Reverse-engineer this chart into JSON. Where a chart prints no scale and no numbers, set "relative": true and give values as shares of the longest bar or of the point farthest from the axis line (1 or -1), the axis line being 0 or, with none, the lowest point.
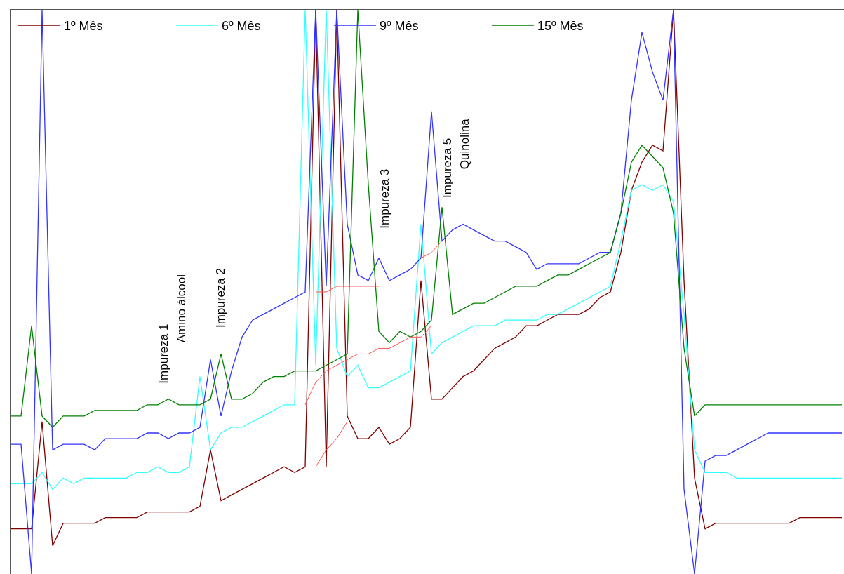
{
  "chart_data": {
    "type": "line",
    "relative": true,
    "legend": "top left",
    "marker": "none",
    "line_style": "solid",
    "categories": [
      null,
      null,
      null,
      null,
      null,
      null,
      null,
      null,
      null,
      null,
      null,
      null,
      null,
      null,
      null,
      null,
      null,
      null,
      null,
      null,
      null,
      null,
      null,
      null,
      null,
      null,
      null,
      null,
      null,
      null,
      null,
      null,
      null,
      null,
      null,
      null,
      null,
      null,
      null,
      null,
      null,
      null,
      null,
      null,
      null,
      null,
      null,
      null,
      null,
      null,
      null,
      null,
      null,
      null,
      null,
      null,
      null,
      null,
      null,
      null,
      null,
      null,
      null,
      null,
      null,
      null,
      null,
      null,
      null,
      null,
      null,
      null,
      null,
      null,
      null,
      null,
      null,
      null,
      null,
      null
    ],
    "series": [
      {
        "name": "1º Mês",
        "color": "#800000",
        "values": [
          0.08,
          0.08,
          0.08,
          0.27,
          0.05,
          0.09,
          0.09,
          0.09,
          0.09,
          0.1,
          0.1,
          0.1,
          0.1,
          0.11,
          0.11,
          0.11,
          0.11,
          0.11,
          0.12,
          0.22,
          0.13,
          0.14,
          0.15,
          0.16,
          0.17,
          0.18,
          0.19,
          0.18,
          0.19,
          1,
          0.19,
          1,
          0.28,
          0.24,
          0.24,
          0.26,
          0.23,
          0.24,
          0.26,
          0.52,
          0.31,
          0.31,
          0.33,
          0.35,
          0.36,
          0.38,
          0.4,
          0.41,
          0.42,
          0.44,
          0.44,
          0.45,
          0.46,
          0.46,
          0.46,
          0.47,
          0.49,
          0.5,
          0.57,
          0.68,
          0.73,
          0.76,
          0.75,
          1,
          0.52,
          0.17,
          0.08,
          0.09,
          0.09,
          0.09,
          0.09,
          0.09,
          0.09,
          0.09,
          0.09,
          0.1,
          0.1,
          0.1,
          0.1,
          0.1
        ]
      },
      {
        "name": "6º Mês",
        "color": "#33ffff",
        "values": [
          0.16,
          0.16,
          0.16,
          0.18,
          0.15,
          0.17,
          0.16,
          0.17,
          0.17,
          0.17,
          0.17,
          0.17,
          0.18,
          0.18,
          0.19,
          0.18,
          0.18,
          0.19,
          0.35,
          0.22,
          0.25,
          0.26,
          0.26,
          0.27,
          0.28,
          0.29,
          0.3,
          0.3,
          1,
          0.37,
          1,
          0.4,
          0.35,
          0.37,
          0.33,
          0.33,
          0.34,
          0.35,
          0.36,
          0.62,
          0.39,
          0.41,
          0.42,
          0.43,
          0.44,
          0.44,
          0.44,
          0.45,
          0.45,
          0.45,
          0.45,
          0.46,
          0.46,
          0.47,
          0.48,
          0.49,
          0.5,
          0.51,
          0.59,
          0.68,
          0.69,
          0.68,
          0.69,
          0.66,
          0.46,
          0.22,
          0.18,
          0.18,
          0.18,
          0.17,
          0.17,
          0.17,
          0.17,
          0.17,
          0.17,
          0.17,
          0.17,
          0.17,
          0.17,
          0.17
        ]
      },
      {
        "name": "9º Mês",
        "color": "#3333ff",
        "values": [
          0.23,
          0.23,
          0,
          1,
          0.22,
          0.23,
          0.23,
          0.23,
          0.22,
          0.24,
          0.24,
          0.24,
          0.24,
          0.25,
          0.25,
          0.24,
          0.25,
          0.25,
          0.26,
          0.38,
          0.28,
          0.36,
          0.42,
          0.45,
          0.46,
          0.47,
          0.48,
          0.49,
          0.5,
          1,
          0.51,
          1,
          0.62,
          0.53,
          0.52,
          0.56,
          0.52,
          0.53,
          0.54,
          0.56,
          0.82,
          0.59,
          0.61,
          0.62,
          0.61,
          0.6,
          0.59,
          0.59,
          0.58,
          0.57,
          0.54,
          0.55,
          0.55,
          0.55,
          0.55,
          0.56,
          0.57,
          0.57,
          0.64,
          0.84,
          0.96,
          0.89,
          0.84,
          1,
          0.15,
          0,
          0.2,
          0.21,
          0.21,
          0.22,
          0.23,
          0.24,
          0.25,
          0.25,
          0.25,
          0.25,
          0.25,
          0.25,
          0.25,
          0.25
        ]
      },
      {
        "name": "15º Mês",
        "color": "#008000",
        "values": [
          0.28,
          0.28,
          0.44,
          0.28,
          0.26,
          0.28,
          0.28,
          0.28,
          0.29,
          0.29,
          0.29,
          0.29,
          0.29,
          0.3,
          0.3,
          0.31,
          0.3,
          0.3,
          0.3,
          0.31,
          0.39,
          0.31,
          0.31,
          0.32,
          0.34,
          0.35,
          0.35,
          0.36,
          0.36,
          0.36,
          0.37,
          0.38,
          0.39,
          1,
          0.69,
          0.43,
          0.41,
          0.43,
          0.42,
          0.43,
          0.45,
          0.65,
          0.46,
          0.47,
          0.48,
          0.48,
          0.49,
          0.5,
          0.51,
          0.51,
          0.51,
          0.52,
          0.53,
          0.53,
          0.54,
          0.55,
          0.56,
          0.57,
          0.64,
          0.73,
          0.76,
          0.74,
          0.72,
          0.64,
          0.4,
          0.28,
          0.3,
          0.3,
          0.3,
          0.3,
          0.3,
          0.3,
          0.3,
          0.3,
          0.3,
          0.3,
          0.3,
          0.3,
          0.3,
          0.3
        ]
      },
      {
        "color": "#ff5050",
        "values": [
          null,
          null,
          null,
          null,
          null,
          null,
          null,
          null,
          null,
          null,
          null,
          null,
          null,
          null,
          null,
          null,
          null,
          null,
          null,
          null,
          null,
          null,
          null,
          null,
          null,
          null,
          null,
          null,
          null,
          0.5,
          0.5,
          0.51,
          0.51,
          0.51,
          0.51,
          0.51,
          null,
          null,
          null,
          null,
          null,
          null,
          null,
          null,
          null,
          null,
          null,
          null,
          null,
          null,
          null,
          null,
          null,
          null,
          null,
          null,
          null,
          null,
          null,
          null,
          null,
          null,
          null,
          null,
          null,
          null,
          null,
          null,
          null,
          null,
          null,
          null,
          null,
          null,
          null,
          null,
          null,
          null,
          null,
          null
        ]
      },
      {
        "color": "#ff5050",
        "values": [
          null,
          null,
          null,
          null,
          null,
          null,
          null,
          null,
          null,
          null,
          null,
          null,
          null,
          null,
          null,
          null,
          null,
          null,
          null,
          null,
          null,
          null,
          null,
          null,
          null,
          null,
          null,
          null,
          0.3,
          0.34,
          0.36,
          0.37,
          0.38,
          0.39,
          0.39,
          0.4,
          0.4,
          0.41,
          0.42,
          0.42,
          0.44,
          null,
          null,
          null,
          null,
          null,
          null,
          null,
          null,
          null,
          null,
          null,
          null,
          null,
          null,
          null,
          null,
          null,
          null,
          null,
          null,
          null,
          null,
          null,
          null,
          null,
          null,
          null,
          null,
          null,
          null,
          null,
          null,
          null,
          null,
          null,
          null,
          null,
          null,
          null
        ]
      },
      {
        "color": "#ff5050",
        "values": [
          null,
          null,
          null,
          null,
          null,
          null,
          null,
          null,
          null,
          null,
          null,
          null,
          null,
          null,
          null,
          null,
          null,
          null,
          null,
          null,
          null,
          null,
          null,
          null,
          null,
          null,
          null,
          null,
          null,
          0.19,
          0.22,
          0.24,
          0.27,
          null,
          null,
          null,
          null,
          null,
          null,
          null,
          null,
          null,
          null,
          null,
          null,
          null,
          null,
          null,
          null,
          null,
          null,
          null,
          null,
          null,
          null,
          null,
          null,
          null,
          null,
          null,
          null,
          null,
          null,
          null,
          null,
          null,
          null,
          null,
          null,
          null,
          null,
          null,
          null,
          null,
          null,
          null,
          null,
          null,
          null,
          null
        ]
      },
      {
        "color": "#ff5050",
        "values": [
          null,
          null,
          null,
          null,
          null,
          null,
          null,
          null,
          null,
          null,
          null,
          null,
          null,
          null,
          null,
          null,
          null,
          null,
          null,
          null,
          null,
          null,
          null,
          null,
          null,
          null,
          null,
          null,
          null,
          null,
          null,
          null,
          null,
          null,
          null,
          null,
          null,
          null,
          null,
          0.56,
          0.57,
          0.59,
          null,
          null,
          null,
          null,
          null,
          null,
          null,
          null,
          null,
          null,
          null,
          null,
          null,
          null,
          null,
          null,
          null,
          null,
          null,
          null,
          null,
          null,
          null,
          null,
          null,
          null,
          null,
          null,
          null,
          null,
          null,
          null,
          null,
          null,
          null,
          null,
          null,
          null
        ]
      }
    ],
    "annotations": [
      "Impureza 1",
      "Amino álcool",
      "Impureza 2",
      "Impureza 3",
      "Impureza 5",
      "Quinolina"
    ]
  }
}
